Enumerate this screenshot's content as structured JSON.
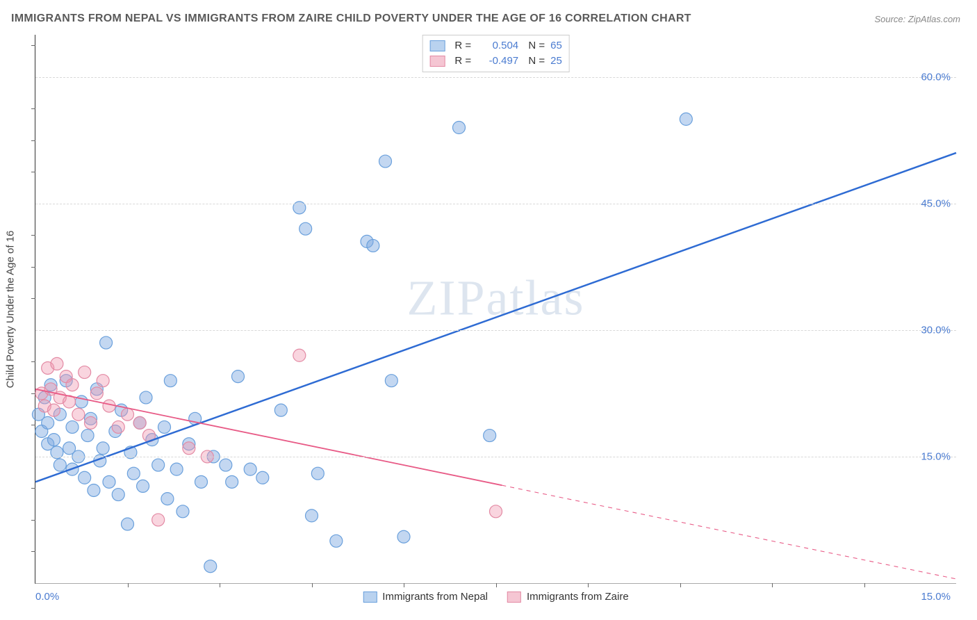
{
  "title": "IMMIGRANTS FROM NEPAL VS IMMIGRANTS FROM ZAIRE CHILD POVERTY UNDER THE AGE OF 16 CORRELATION CHART",
  "title_fontsize": 16,
  "title_color": "#5a5a5a",
  "source_label": "Source: ZipAtlas.com",
  "watermark": "ZIPatlas",
  "background_color": "#ffffff",
  "grid_color": "#d8d8d8",
  "axis_color": "#333333",
  "tick_label_color": "#4a7bd0",
  "y_axis_title": "Child Poverty Under the Age of 16",
  "xlim": [
    0.0,
    15.0
  ],
  "ylim": [
    0.0,
    65.0
  ],
  "yticks": [
    15.0,
    30.0,
    45.0,
    60.0
  ],
  "ytick_labels": [
    "15.0%",
    "30.0%",
    "45.0%",
    "60.0%"
  ],
  "x_left_label": "0.0%",
  "x_right_label": "15.0%",
  "xtick_positions": [
    1.5,
    3.0,
    4.5,
    6.0,
    7.5,
    9.0,
    10.5,
    12.0,
    13.5
  ],
  "yminor_ticks": [
    3.75,
    7.5,
    11.25,
    18.75,
    22.5,
    26.25,
    33.75,
    37.5,
    41.25,
    48.75,
    52.5,
    56.25,
    63.75
  ],
  "marker_radius": 9,
  "marker_stroke_width": 1.2,
  "series": [
    {
      "name": "Immigrants from Nepal",
      "legend_label": "Immigrants from Nepal",
      "fill_color": "rgba(122,167,224,0.45)",
      "stroke_color": "#6aa0dc",
      "swatch_fill": "#b9d2ef",
      "swatch_border": "#6aa0dc",
      "R": "0.504",
      "N": "65",
      "trend": {
        "color": "#2e6bd3",
        "width": 2.5,
        "x1": 0.0,
        "y1": 12.0,
        "x2": 15.0,
        "y2": 51.0,
        "solid_to_x": 15.0
      },
      "points": [
        [
          0.05,
          20.0
        ],
        [
          0.1,
          18.0
        ],
        [
          0.15,
          22.0
        ],
        [
          0.2,
          16.5
        ],
        [
          0.2,
          19.0
        ],
        [
          0.25,
          23.5
        ],
        [
          0.3,
          17.0
        ],
        [
          0.35,
          15.5
        ],
        [
          0.4,
          14.0
        ],
        [
          0.4,
          20.0
        ],
        [
          0.5,
          24.0
        ],
        [
          0.55,
          16.0
        ],
        [
          0.6,
          18.5
        ],
        [
          0.6,
          13.5
        ],
        [
          0.7,
          15.0
        ],
        [
          0.75,
          21.5
        ],
        [
          0.8,
          12.5
        ],
        [
          0.85,
          17.5
        ],
        [
          0.9,
          19.5
        ],
        [
          0.95,
          11.0
        ],
        [
          1.0,
          23.0
        ],
        [
          1.05,
          14.5
        ],
        [
          1.1,
          16.0
        ],
        [
          1.15,
          28.5
        ],
        [
          1.2,
          12.0
        ],
        [
          1.3,
          18.0
        ],
        [
          1.35,
          10.5
        ],
        [
          1.4,
          20.5
        ],
        [
          1.5,
          7.0
        ],
        [
          1.55,
          15.5
        ],
        [
          1.6,
          13.0
        ],
        [
          1.7,
          19.0
        ],
        [
          1.75,
          11.5
        ],
        [
          1.8,
          22.0
        ],
        [
          1.9,
          17.0
        ],
        [
          2.0,
          14.0
        ],
        [
          2.1,
          18.5
        ],
        [
          2.15,
          10.0
        ],
        [
          2.2,
          24.0
        ],
        [
          2.3,
          13.5
        ],
        [
          2.4,
          8.5
        ],
        [
          2.5,
          16.5
        ],
        [
          2.6,
          19.5
        ],
        [
          2.7,
          12.0
        ],
        [
          2.85,
          2.0
        ],
        [
          2.9,
          15.0
        ],
        [
          3.1,
          14.0
        ],
        [
          3.2,
          12.0
        ],
        [
          3.3,
          24.5
        ],
        [
          3.5,
          13.5
        ],
        [
          3.7,
          12.5
        ],
        [
          4.0,
          20.5
        ],
        [
          4.3,
          44.5
        ],
        [
          4.4,
          42.0
        ],
        [
          4.5,
          8.0
        ],
        [
          4.6,
          13.0
        ],
        [
          4.9,
          5.0
        ],
        [
          5.4,
          40.5
        ],
        [
          5.5,
          40.0
        ],
        [
          5.7,
          50.0
        ],
        [
          5.8,
          24.0
        ],
        [
          6.0,
          5.5
        ],
        [
          6.9,
          54.0
        ],
        [
          7.4,
          17.5
        ],
        [
          10.6,
          55.0
        ]
      ]
    },
    {
      "name": "Immigrants from Zaire",
      "legend_label": "Immigrants from Zaire",
      "fill_color": "rgba(240,150,175,0.40)",
      "stroke_color": "#e38aa4",
      "swatch_fill": "#f5c6d3",
      "swatch_border": "#e38aa4",
      "R": "-0.497",
      "N": "25",
      "trend": {
        "color": "#e85a86",
        "width": 1.8,
        "x1": 0.0,
        "y1": 23.0,
        "x2": 15.0,
        "y2": 0.5,
        "solid_to_x": 7.6
      },
      "points": [
        [
          0.1,
          22.5
        ],
        [
          0.15,
          21.0
        ],
        [
          0.2,
          25.5
        ],
        [
          0.25,
          23.0
        ],
        [
          0.3,
          20.5
        ],
        [
          0.35,
          26.0
        ],
        [
          0.4,
          22.0
        ],
        [
          0.5,
          24.5
        ],
        [
          0.55,
          21.5
        ],
        [
          0.6,
          23.5
        ],
        [
          0.7,
          20.0
        ],
        [
          0.8,
          25.0
        ],
        [
          0.9,
          19.0
        ],
        [
          1.0,
          22.5
        ],
        [
          1.1,
          24.0
        ],
        [
          1.2,
          21.0
        ],
        [
          1.35,
          18.5
        ],
        [
          1.5,
          20.0
        ],
        [
          1.7,
          19.0
        ],
        [
          1.85,
          17.5
        ],
        [
          2.0,
          7.5
        ],
        [
          2.5,
          16.0
        ],
        [
          2.8,
          15.0
        ],
        [
          4.3,
          27.0
        ],
        [
          7.5,
          8.5
        ]
      ]
    }
  ],
  "legend_top_labels": {
    "R": "R =",
    "N": "N ="
  }
}
